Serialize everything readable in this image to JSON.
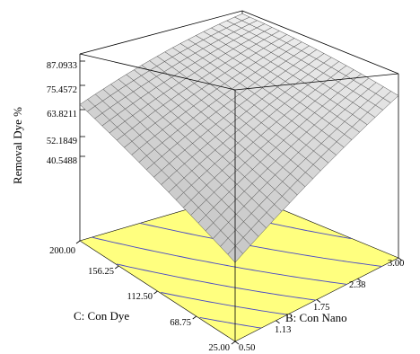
{
  "chart_data": {
    "type": "surface3d",
    "title": "",
    "zlabel": "Removal Dye %",
    "xlabel": "B: Con Nano",
    "ylabel": "C: Con Dye",
    "x_ticks": [
      "0.50",
      "1.13",
      "1.75",
      "2.38",
      "3.00"
    ],
    "y_ticks": [
      "25.00",
      "68.75",
      "112.50",
      "156.25",
      "200.00"
    ],
    "z_ticks": [
      "40.5488",
      "52.1849",
      "63.8211",
      "75.4572",
      "87.0933"
    ],
    "x_range": [
      0.5,
      3.0
    ],
    "y_range": [
      25.0,
      200.0
    ],
    "z_range": [
      40.5488,
      87.0933
    ],
    "corner_values": [
      {
        "x": 0.5,
        "y": 25.0,
        "z": 40.5
      },
      {
        "x": 3.0,
        "y": 25.0,
        "z": 79.0
      },
      {
        "x": 0.5,
        "y": 200.0,
        "z": 67.0
      },
      {
        "x": 3.0,
        "y": 200.0,
        "z": 85.0
      }
    ],
    "floor_color": "#ffff7f",
    "contour_color": "#4848c8",
    "grid": true
  }
}
